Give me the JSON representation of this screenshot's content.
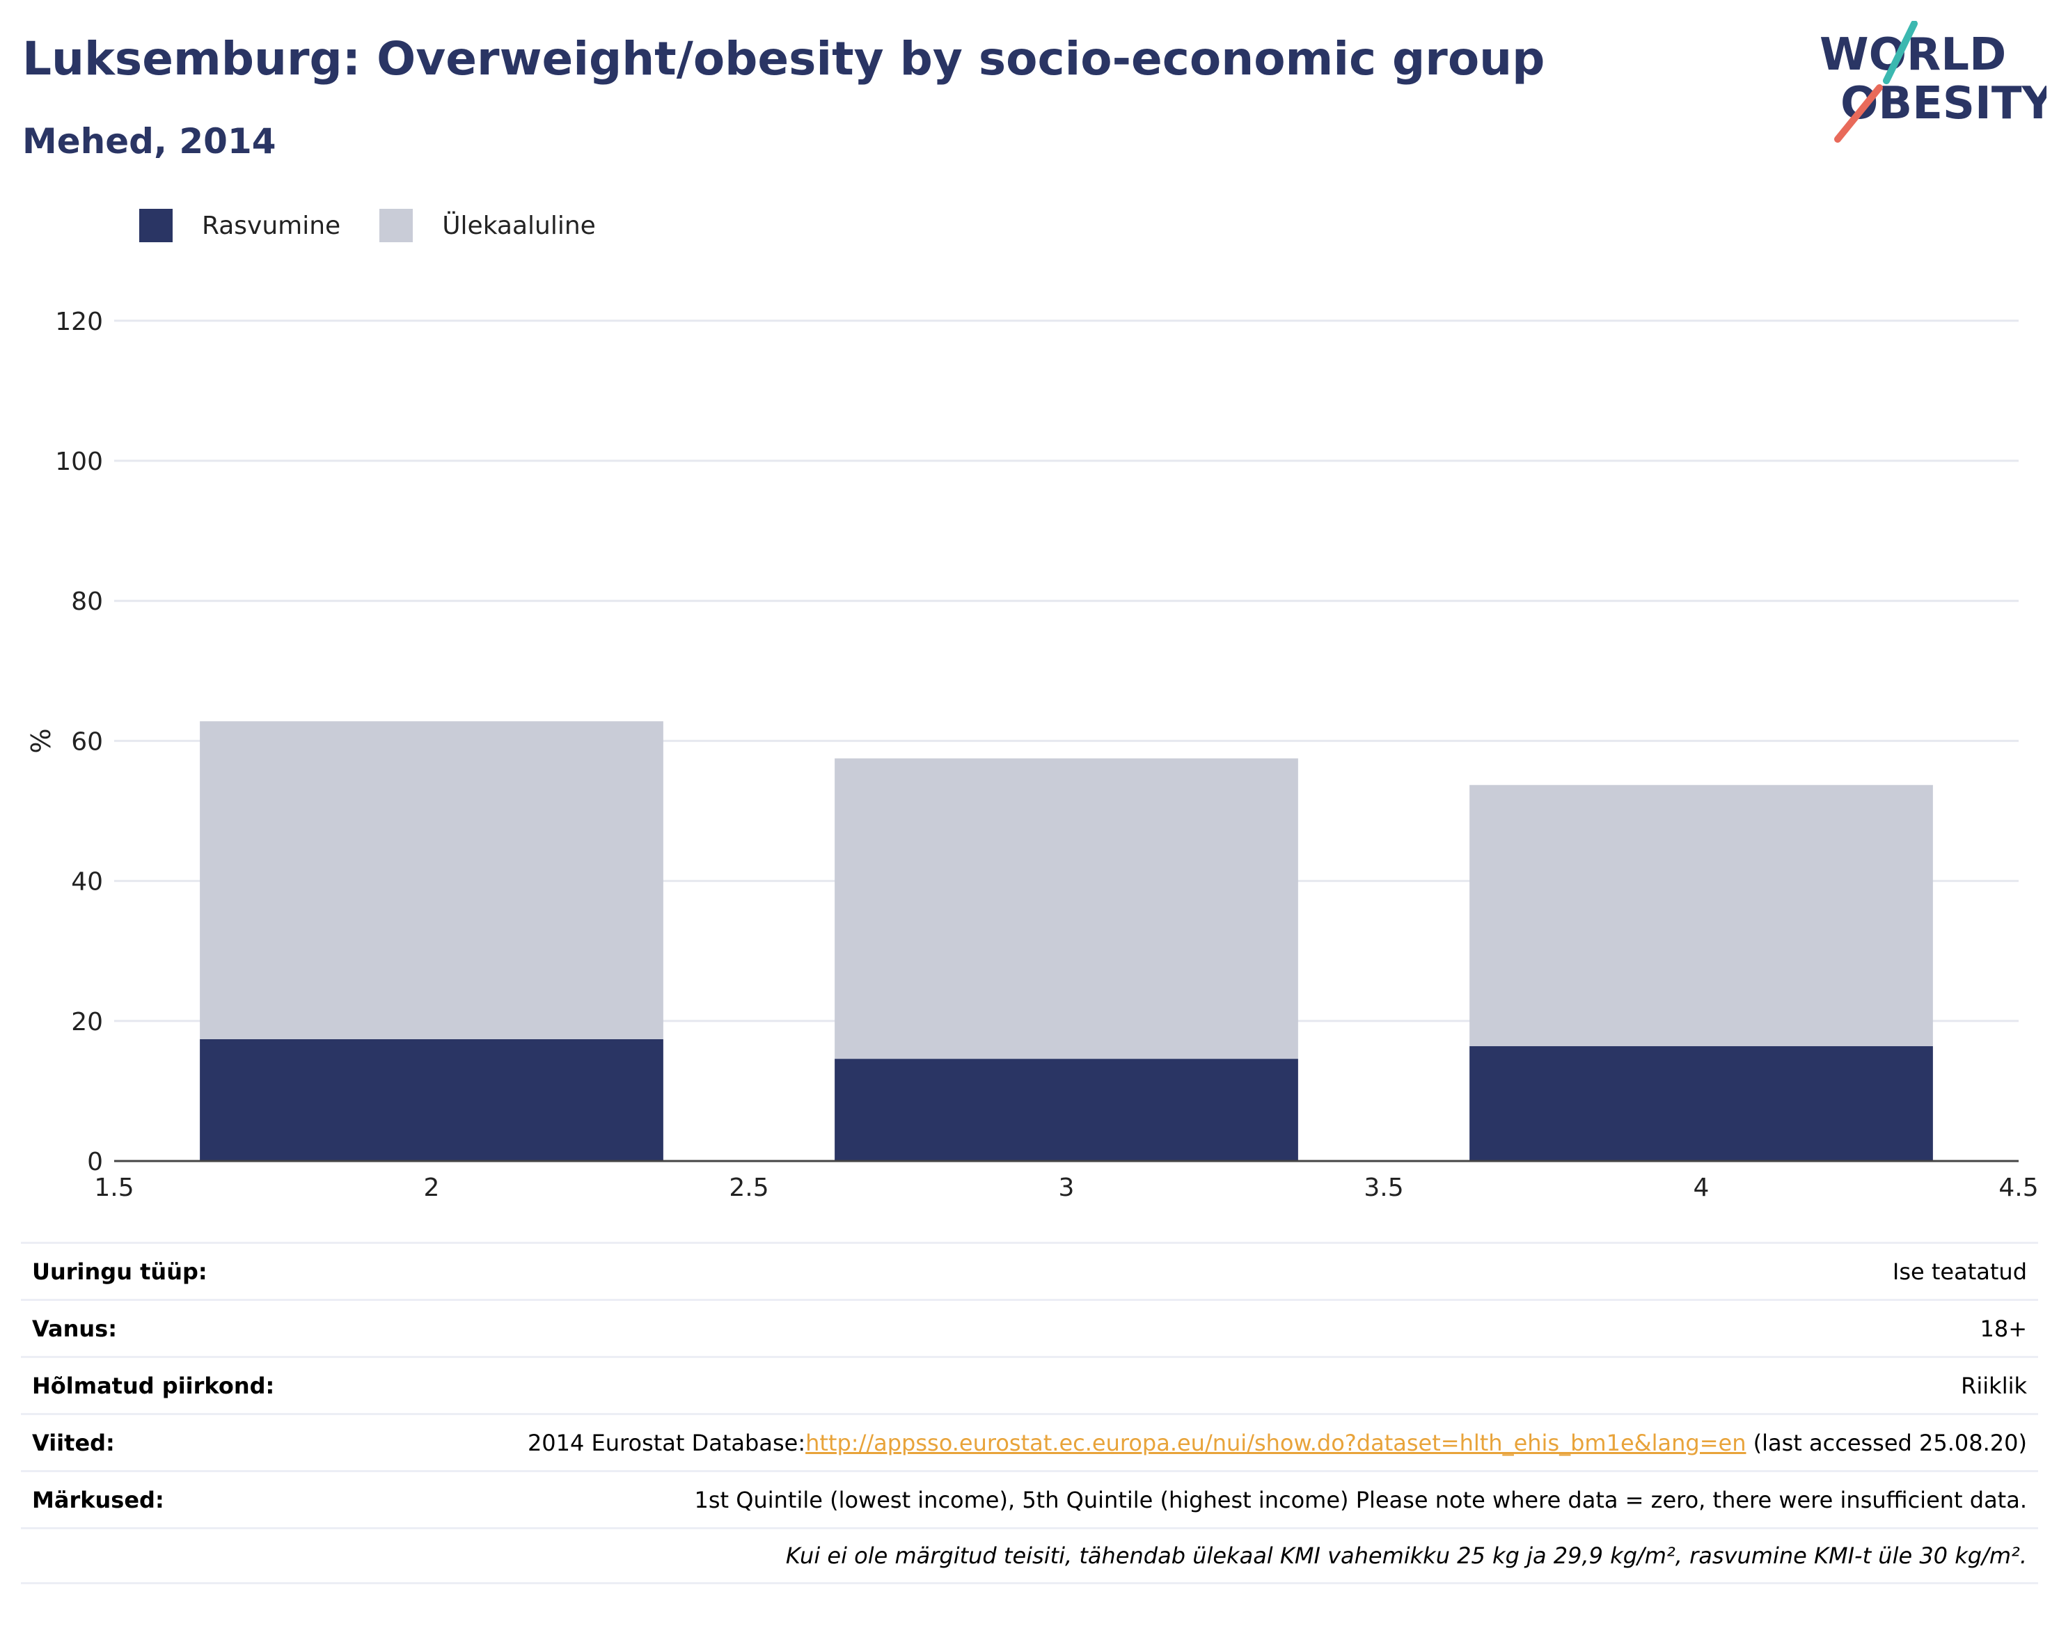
{
  "title": "Luksemburg: Overweight/obesity by socio-economic group",
  "subtitle": "Mehed, 2014",
  "logo": {
    "line1": "WORLD",
    "line2": "OBESITY"
  },
  "colors": {
    "obesity": "#2a3564",
    "overweight": "#c9ccd7",
    "title": "#2a3564",
    "link": "#e8a33a",
    "grid": "#e6e8ef"
  },
  "chart_data": {
    "type": "bar",
    "stacked": true,
    "x": [
      2,
      3,
      4
    ],
    "series": [
      {
        "name": "Rasvumine",
        "values": [
          17.4,
          14.6,
          16.4
        ]
      },
      {
        "name": "Ülekaaluline",
        "values": [
          45.4,
          42.9,
          37.3
        ]
      }
    ],
    "ylabel": "%",
    "xlim": [
      1.5,
      4.5
    ],
    "ylim": [
      0,
      120
    ],
    "yticks": [
      "0",
      "20",
      "40",
      "60",
      "80",
      "100",
      "120"
    ],
    "xticks": [
      "1.5",
      "2",
      "2.5",
      "3",
      "3.5",
      "4",
      "4.5"
    ],
    "grid": true,
    "legend": "top-left"
  },
  "info": [
    {
      "label": "Uuringu tüüp:",
      "value": "Ise teatatud"
    },
    {
      "label": "Vanus:",
      "value": "18+"
    },
    {
      "label": "Hõlmatud piirkond:",
      "value": "Riiklik"
    },
    {
      "label": "Viited:",
      "value_prefix": "2014 Eurostat Database:",
      "link": "http://appsso.eurostat.ec.europa.eu/nui/show.do?dataset=hlth_ehis_bm1e&lang=en",
      "value_suffix": " (last accessed 25.08.20)"
    },
    {
      "label": "Märkused:",
      "value": "1st Quintile (lowest income), 5th Quintile (highest income) Please note where data = zero, there were insufficient data."
    }
  ],
  "footnote": "Kui ei ole märgitud teisiti, tähendab ülekaal KMI vahemikku 25 kg ja 29,9 kg/m², rasvumine KMI-t üle 30 kg/m²."
}
